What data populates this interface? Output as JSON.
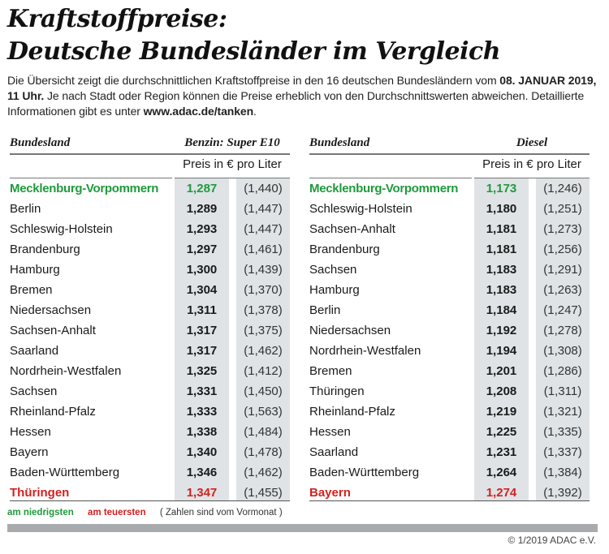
{
  "title": {
    "line1": "Kraftstoffpreise:",
    "line2": "Deutsche Bundesländer im Vergleich"
  },
  "intro": {
    "part1": "Die Übersicht zeigt die durchschnittlichen Kraftstoffpreise in den 16 deutschen Bundesländern vom ",
    "date": "08. JANUAR 2019, 11 Uhr.",
    "part2": " Je nach Stadt oder Region können die Preise erheblich von den Durchschnittswerten abweichen. Detaillierte Informationen gibt es unter ",
    "url": "www.adac.de/tanken",
    "part3": "."
  },
  "colors": {
    "lowest": "#1f9a3c",
    "highest": "#d42020",
    "column_bg": "#dfe3e6"
  },
  "tables": [
    {
      "header_name": "Bundesland",
      "header_fuel": "Benzin: Super E10",
      "unit": "Preis in € pro Liter",
      "rows": [
        {
          "name": "Mecklenburg-Vorpommern",
          "price": "1,287",
          "prev": "(1,440)",
          "mark": "low"
        },
        {
          "name": "Berlin",
          "price": "1,289",
          "prev": "(1,447)"
        },
        {
          "name": "Schleswig-Holstein",
          "price": "1,293",
          "prev": "(1,447)"
        },
        {
          "name": "Brandenburg",
          "price": "1,297",
          "prev": "(1,461)"
        },
        {
          "name": "Hamburg",
          "price": "1,300",
          "prev": "(1,439)"
        },
        {
          "name": "Bremen",
          "price": "1,304",
          "prev": "(1,370)"
        },
        {
          "name": "Niedersachsen",
          "price": "1,311",
          "prev": "(1,378)"
        },
        {
          "name": "Sachsen-Anhalt",
          "price": "1,317",
          "prev": "(1,375)"
        },
        {
          "name": "Saarland",
          "price": "1,317",
          "prev": "(1,462)"
        },
        {
          "name": "Nordrhein-Westfalen",
          "price": "1,325",
          "prev": "(1,412)"
        },
        {
          "name": "Sachsen",
          "price": "1,331",
          "prev": "(1,450)"
        },
        {
          "name": "Rheinland-Pfalz",
          "price": "1,333",
          "prev": "(1,563)"
        },
        {
          "name": "Hessen",
          "price": "1,338",
          "prev": "(1,484)"
        },
        {
          "name": "Bayern",
          "price": "1,340",
          "prev": "(1,478)"
        },
        {
          "name": "Baden-Württemberg",
          "price": "1,346",
          "prev": "(1,462)"
        },
        {
          "name": "Thüringen",
          "price": "1,347",
          "prev": "(1,455)",
          "mark": "high"
        }
      ]
    },
    {
      "header_name": "Bundesland",
      "header_fuel": "Diesel",
      "unit": "Preis in € pro Liter",
      "rows": [
        {
          "name": "Mecklenburg-Vorpommern",
          "price": "1,173",
          "prev": "(1,246)",
          "mark": "low"
        },
        {
          "name": "Schleswig-Holstein",
          "price": "1,180",
          "prev": "(1,251)"
        },
        {
          "name": "Sachsen-Anhalt",
          "price": "1,181",
          "prev": "(1,273)"
        },
        {
          "name": "Brandenburg",
          "price": "1,181",
          "prev": "(1,256)"
        },
        {
          "name": "Sachsen",
          "price": "1,183",
          "prev": "(1,291)"
        },
        {
          "name": "Hamburg",
          "price": "1,183",
          "prev": "(1,263)"
        },
        {
          "name": "Berlin",
          "price": "1,184",
          "prev": "(1,247)"
        },
        {
          "name": "Niedersachsen",
          "price": "1,192",
          "prev": "(1,278)"
        },
        {
          "name": "Nordrhein-Westfalen",
          "price": "1,194",
          "prev": "(1,308)"
        },
        {
          "name": "Bremen",
          "price": "1,201",
          "prev": "(1,286)"
        },
        {
          "name": "Thüringen",
          "price": "1,208",
          "prev": "(1,311)"
        },
        {
          "name": "Rheinland-Pfalz",
          "price": "1,219",
          "prev": "(1,321)"
        },
        {
          "name": "Hessen",
          "price": "1,225",
          "prev": "(1,335)"
        },
        {
          "name": "Saarland",
          "price": "1,231",
          "prev": "(1,337)"
        },
        {
          "name": "Baden-Württemberg",
          "price": "1,264",
          "prev": "(1,384)"
        },
        {
          "name": "Bayern",
          "price": "1,274",
          "prev": "(1,392)",
          "mark": "high"
        }
      ]
    }
  ],
  "legend": {
    "lowest": "am niedrigsten",
    "highest": "am teuersten",
    "note": "( Zahlen sind vom Vormonat )"
  },
  "copyright": "© 1/2019 ADAC e.V."
}
